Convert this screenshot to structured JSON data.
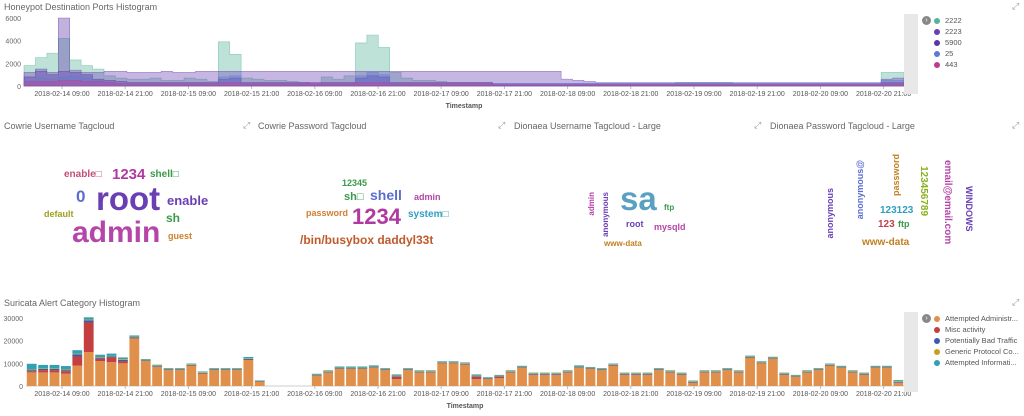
{
  "honeypot": {
    "title": "Honeypot Destination Ports Histogram",
    "axis_label": "Timestamp",
    "y_ticks": [
      "6000",
      "4000",
      "2000",
      "0"
    ],
    "x_ticks": [
      "2018-02-14 09:00",
      "2018-02-14 21:00",
      "2018-02-15 09:00",
      "2018-02-15 21:00",
      "2018-02-16 09:00",
      "2018-02-16 21:00",
      "2018-02-17 09:00",
      "2018-02-17 21:00",
      "2018-02-18 09:00",
      "2018-02-18 21:00",
      "2018-02-19 09:00",
      "2018-02-19 21:00",
      "2018-02-20 09:00",
      "2018-02-20 21:00"
    ],
    "legend": [
      {
        "label": "2222",
        "color": "#54b399"
      },
      {
        "label": "2223",
        "color": "#6a3fb4"
      },
      {
        "label": "5900",
        "color": "#5a35a5"
      },
      {
        "label": "25",
        "color": "#6079d8"
      },
      {
        "label": "443",
        "color": "#c4398f"
      }
    ]
  },
  "cowrie_user": {
    "title": "Cowrie Username Tagcloud",
    "words": [
      {
        "text": "root",
        "color": "#6a3fb4"
      },
      {
        "text": "admin",
        "color": "#b545a8"
      },
      {
        "text": "enable□",
        "color": "#c04f7a"
      },
      {
        "text": "1234",
        "color": "#b03aa0"
      },
      {
        "text": "shell□",
        "color": "#3a9a4a"
      },
      {
        "text": "0",
        "color": "#5a6ed0"
      },
      {
        "text": "enable",
        "color": "#6a3fb4"
      },
      {
        "text": "sh",
        "color": "#3a9a4a"
      },
      {
        "text": "default",
        "color": "#a0a020"
      },
      {
        "text": "guest",
        "color": "#d08030"
      }
    ]
  },
  "cowrie_pass": {
    "title": "Cowrie Password Tagcloud",
    "words": [
      {
        "text": "12345",
        "color": "#3a9a4a"
      },
      {
        "text": "sh□",
        "color": "#3a9a4a"
      },
      {
        "text": "shell",
        "color": "#5a6ed0"
      },
      {
        "text": "admin",
        "color": "#b545a8"
      },
      {
        "text": "password",
        "color": "#d08030"
      },
      {
        "text": "1234",
        "color": "#b03aa0"
      },
      {
        "text": "system□",
        "color": "#30a0c0"
      },
      {
        "text": "/bin/busybox daddyl33t",
        "color": "#c05a2a"
      }
    ]
  },
  "dionaea_user": {
    "title": "Dionaea Username Tagcloud - Large",
    "words": [
      {
        "text": "sa",
        "color": "#5aa0c0"
      },
      {
        "text": "admin",
        "color": "#b545a8"
      },
      {
        "text": "anonymous",
        "color": "#6a3fb4"
      },
      {
        "text": "ftp",
        "color": "#3a9a4a"
      },
      {
        "text": "root",
        "color": "#6a3fb4"
      },
      {
        "text": "mysqld",
        "color": "#b545a8"
      },
      {
        "text": "www-data",
        "color": "#c08020"
      }
    ]
  },
  "dionaea_pass": {
    "title": "Dionaea Password Tagcloud - Large",
    "words": [
      {
        "text": "anonymous",
        "color": "#6a3fb4"
      },
      {
        "text": "anonymous@",
        "color": "#5a6ed0"
      },
      {
        "text": "password",
        "color": "#c08020"
      },
      {
        "text": "email@email.com",
        "color": "#b545a8"
      },
      {
        "text": "123456789",
        "color": "#8ab020"
      },
      {
        "text": "WINDOWS",
        "color": "#6a3fb4"
      },
      {
        "text": "123123",
        "color": "#30a0c0"
      },
      {
        "text": "123",
        "color": "#c04050"
      },
      {
        "text": "ftp",
        "color": "#3a9a4a"
      },
      {
        "text": "www-data",
        "color": "#c08020"
      }
    ]
  },
  "suricata": {
    "title": "Suricata Alert Category Histogram",
    "axis_label": "Timestamp",
    "y_ticks": [
      "30000",
      "20000",
      "10000",
      "0"
    ],
    "x_ticks": [
      "2018-02-14 09:00",
      "2018-02-14 21:00",
      "2018-02-15 09:00",
      "2018-02-15 21:00",
      "2018-02-16 09:00",
      "2018-02-16 21:00",
      "2018-02-17 09:00",
      "2018-02-17 21:00",
      "2018-02-18 09:00",
      "2018-02-18 21:00",
      "2018-02-19 09:00",
      "2018-02-19 21:00",
      "2018-02-20 09:00",
      "2018-02-20 21:00"
    ],
    "legend": [
      {
        "label": "Attempted Administr...",
        "color": "#e0904a"
      },
      {
        "label": "Misc activity",
        "color": "#c44040"
      },
      {
        "label": "Potentially Bad Traffic",
        "color": "#3a5ab4"
      },
      {
        "label": "Generic Protocol Co...",
        "color": "#c8a020"
      },
      {
        "label": "Attempted Informati...",
        "color": "#30a0b4"
      }
    ]
  },
  "chart_data": [
    {
      "type": "area",
      "title": "Honeypot Destination Ports Histogram",
      "xlabel": "Timestamp",
      "ylim": [
        0,
        6000
      ],
      "series": [
        {
          "name": "2222",
          "values": [
            1800,
            2500,
            2900,
            4200,
            2300,
            1800,
            1500,
            900,
            700,
            600,
            600,
            700,
            500,
            500,
            700,
            600,
            400,
            3900,
            2800,
            700,
            600,
            500,
            500,
            400,
            300,
            200,
            800,
            600,
            900,
            3800,
            4500,
            3400,
            1200,
            700,
            500,
            500,
            400,
            300,
            300,
            300,
            300,
            200,
            200,
            200,
            200,
            200,
            200,
            200,
            200,
            200,
            200,
            200,
            200,
            200,
            200,
            200,
            200,
            300,
            300,
            300,
            300,
            300,
            200,
            200,
            200,
            200,
            200,
            200,
            200,
            200,
            200,
            200,
            200,
            200,
            200,
            1200,
            1200
          ]
        },
        {
          "name": "2223",
          "values": [
            1200,
            1300,
            1200,
            1300,
            1400,
            1200,
            1200,
            1300,
            1300,
            1200,
            1200,
            1200,
            1300,
            1200,
            1200,
            1300,
            1300,
            1300,
            1300,
            1300,
            1300,
            1300,
            1300,
            1300,
            1300,
            1300,
            1300,
            1300,
            1300,
            1300,
            1300,
            1300,
            1300,
            1300,
            1300,
            1300,
            1300,
            1300,
            1300,
            1300,
            1300,
            1300,
            1300,
            1300,
            1300,
            1300,
            1300,
            600,
            500,
            400,
            300,
            300,
            300,
            300,
            300,
            300,
            300,
            300,
            300,
            300,
            300,
            300,
            300,
            300,
            300,
            300,
            300,
            300,
            300,
            300,
            300,
            300,
            300,
            300,
            300,
            600,
            700
          ]
        },
        {
          "name": "5900",
          "values": [
            800,
            1500,
            1000,
            6000,
            1200,
            1000,
            600,
            500,
            400,
            300,
            300,
            300,
            300,
            300,
            300,
            300,
            300,
            600,
            700,
            300,
            300,
            300,
            300,
            300,
            300,
            300,
            300,
            300,
            300,
            700,
            900,
            800,
            300,
            300,
            300,
            300,
            300,
            300,
            300,
            300,
            300,
            200,
            200,
            200,
            200,
            200,
            200,
            200,
            200,
            200,
            200,
            200,
            200,
            200,
            200,
            200,
            200,
            200,
            200,
            200,
            200,
            200,
            200,
            200,
            200,
            200,
            200,
            200,
            200,
            200,
            200,
            200,
            200,
            200,
            200,
            300,
            300
          ]
        },
        {
          "name": "25",
          "values": [
            500,
            700,
            600,
            800,
            900,
            700,
            500,
            300,
            200,
            200,
            200,
            200,
            200,
            200,
            200,
            200,
            200,
            800,
            900,
            300,
            200,
            200,
            200,
            200,
            200,
            200,
            200,
            200,
            200,
            900,
            1200,
            1000,
            300,
            200,
            200,
            200,
            200,
            200,
            200,
            200,
            200,
            200,
            200,
            200,
            200,
            200,
            200,
            200,
            200,
            200,
            200,
            200,
            200,
            200,
            200,
            200,
            200,
            200,
            200,
            200,
            200,
            200,
            200,
            200,
            200,
            200,
            200,
            200,
            200,
            200,
            200,
            200,
            200,
            200,
            200,
            500,
            500
          ]
        },
        {
          "name": "443",
          "values": [
            400,
            400,
            400,
            500,
            500,
            400,
            400,
            300,
            200,
            200,
            200,
            200,
            200,
            200,
            200,
            200,
            200,
            300,
            300,
            200,
            200,
            200,
            200,
            200,
            200,
            200,
            200,
            200,
            200,
            300,
            300,
            300,
            200,
            200,
            200,
            200,
            200,
            200,
            200,
            200,
            200,
            100,
            100,
            100,
            100,
            100,
            100,
            100,
            100,
            100,
            100,
            100,
            100,
            100,
            100,
            100,
            100,
            100,
            100,
            100,
            100,
            100,
            100,
            100,
            100,
            100,
            100,
            100,
            100,
            100,
            100,
            100,
            100,
            100,
            100,
            200,
            200
          ]
        }
      ]
    },
    {
      "type": "bar",
      "title": "Suricata Alert Category Histogram",
      "xlabel": "Timestamp",
      "ylim": [
        0,
        30000
      ],
      "series": [
        {
          "name": "Attempted Administr...",
          "values": [
            6000,
            6000,
            6000,
            5500,
            9000,
            15000,
            11000,
            10500,
            10000,
            21000,
            11000,
            8500,
            7000,
            7000,
            9000,
            5500,
            7000,
            7000,
            7000,
            11500,
            2000,
            0,
            0,
            0,
            0,
            4500,
            6000,
            7500,
            7500,
            7500,
            8000,
            7000,
            3000,
            7000,
            6000,
            6000,
            10000,
            10000,
            9500,
            3000,
            3000,
            3500,
            6000,
            8000,
            5000,
            5000,
            5000,
            6000,
            8000,
            7500,
            7000,
            9000,
            5000,
            5000,
            5000,
            7000,
            6000,
            5000,
            1500,
            6000,
            6000,
            7000,
            6000,
            12500,
            10000,
            12000,
            5000,
            4000,
            6000,
            7000,
            9000,
            8000,
            6000,
            5000,
            8000,
            8000,
            1500
          ]
        },
        {
          "name": "Misc activity",
          "values": [
            500,
            1000,
            1000,
            1000,
            4000,
            13000,
            1000,
            2000,
            1000,
            0,
            0,
            0,
            0,
            0,
            0,
            0,
            0,
            0,
            0,
            0,
            0,
            0,
            0,
            0,
            0,
            0,
            0,
            0,
            0,
            0,
            0,
            0,
            1000,
            0,
            0,
            0,
            0,
            0,
            0,
            1000,
            0,
            500,
            0,
            0,
            0,
            0,
            0,
            0,
            0,
            0,
            0,
            0,
            0,
            0,
            0,
            0,
            0,
            0,
            0,
            0,
            0,
            0,
            0,
            0,
            0,
            0,
            0,
            0,
            0,
            0,
            0,
            0,
            0,
            0,
            0,
            0,
            0
          ]
        },
        {
          "name": "Potentially Bad Traffic",
          "values": [
            500,
            500,
            500,
            500,
            1000,
            1000,
            500,
            500,
            500,
            500,
            300,
            300,
            300,
            300,
            300,
            300,
            300,
            300,
            300,
            500,
            200,
            0,
            0,
            0,
            0,
            300,
            300,
            300,
            300,
            300,
            300,
            300,
            300,
            300,
            300,
            300,
            300,
            300,
            300,
            300,
            300,
            300,
            300,
            300,
            300,
            300,
            300,
            300,
            300,
            300,
            300,
            300,
            300,
            300,
            300,
            300,
            300,
            300,
            300,
            300,
            300,
            300,
            300,
            300,
            300,
            300,
            300,
            300,
            300,
            300,
            300,
            300,
            300,
            300,
            300,
            300,
            300
          ]
        },
        {
          "name": "Generic Protocol Co...",
          "values": [
            300,
            300,
            300,
            300,
            300,
            300,
            300,
            300,
            300,
            300,
            300,
            300,
            300,
            300,
            300,
            300,
            300,
            300,
            300,
            300,
            100,
            0,
            0,
            0,
            0,
            300,
            300,
            300,
            300,
            300,
            300,
            300,
            300,
            300,
            300,
            300,
            300,
            300,
            300,
            300,
            300,
            300,
            300,
            300,
            300,
            300,
            300,
            300,
            300,
            300,
            300,
            300,
            300,
            300,
            300,
            300,
            300,
            300,
            300,
            300,
            300,
            300,
            300,
            300,
            300,
            300,
            300,
            300,
            300,
            300,
            300,
            300,
            300,
            300,
            300,
            300,
            300
          ]
        },
        {
          "name": "Attempted Informati...",
          "values": [
            2500,
            1500,
            1500,
            1500,
            1500,
            1000,
            1000,
            1000,
            800,
            500,
            300,
            300,
            300,
            300,
            300,
            300,
            300,
            300,
            300,
            500,
            200,
            0,
            0,
            0,
            0,
            300,
            300,
            500,
            500,
            500,
            500,
            300,
            500,
            300,
            300,
            300,
            300,
            300,
            300,
            500,
            300,
            300,
            300,
            300,
            300,
            300,
            300,
            300,
            500,
            300,
            300,
            300,
            300,
            300,
            300,
            300,
            300,
            300,
            300,
            300,
            300,
            300,
            300,
            300,
            300,
            300,
            300,
            300,
            300,
            300,
            300,
            300,
            300,
            300,
            300,
            300,
            500
          ]
        }
      ]
    }
  ]
}
